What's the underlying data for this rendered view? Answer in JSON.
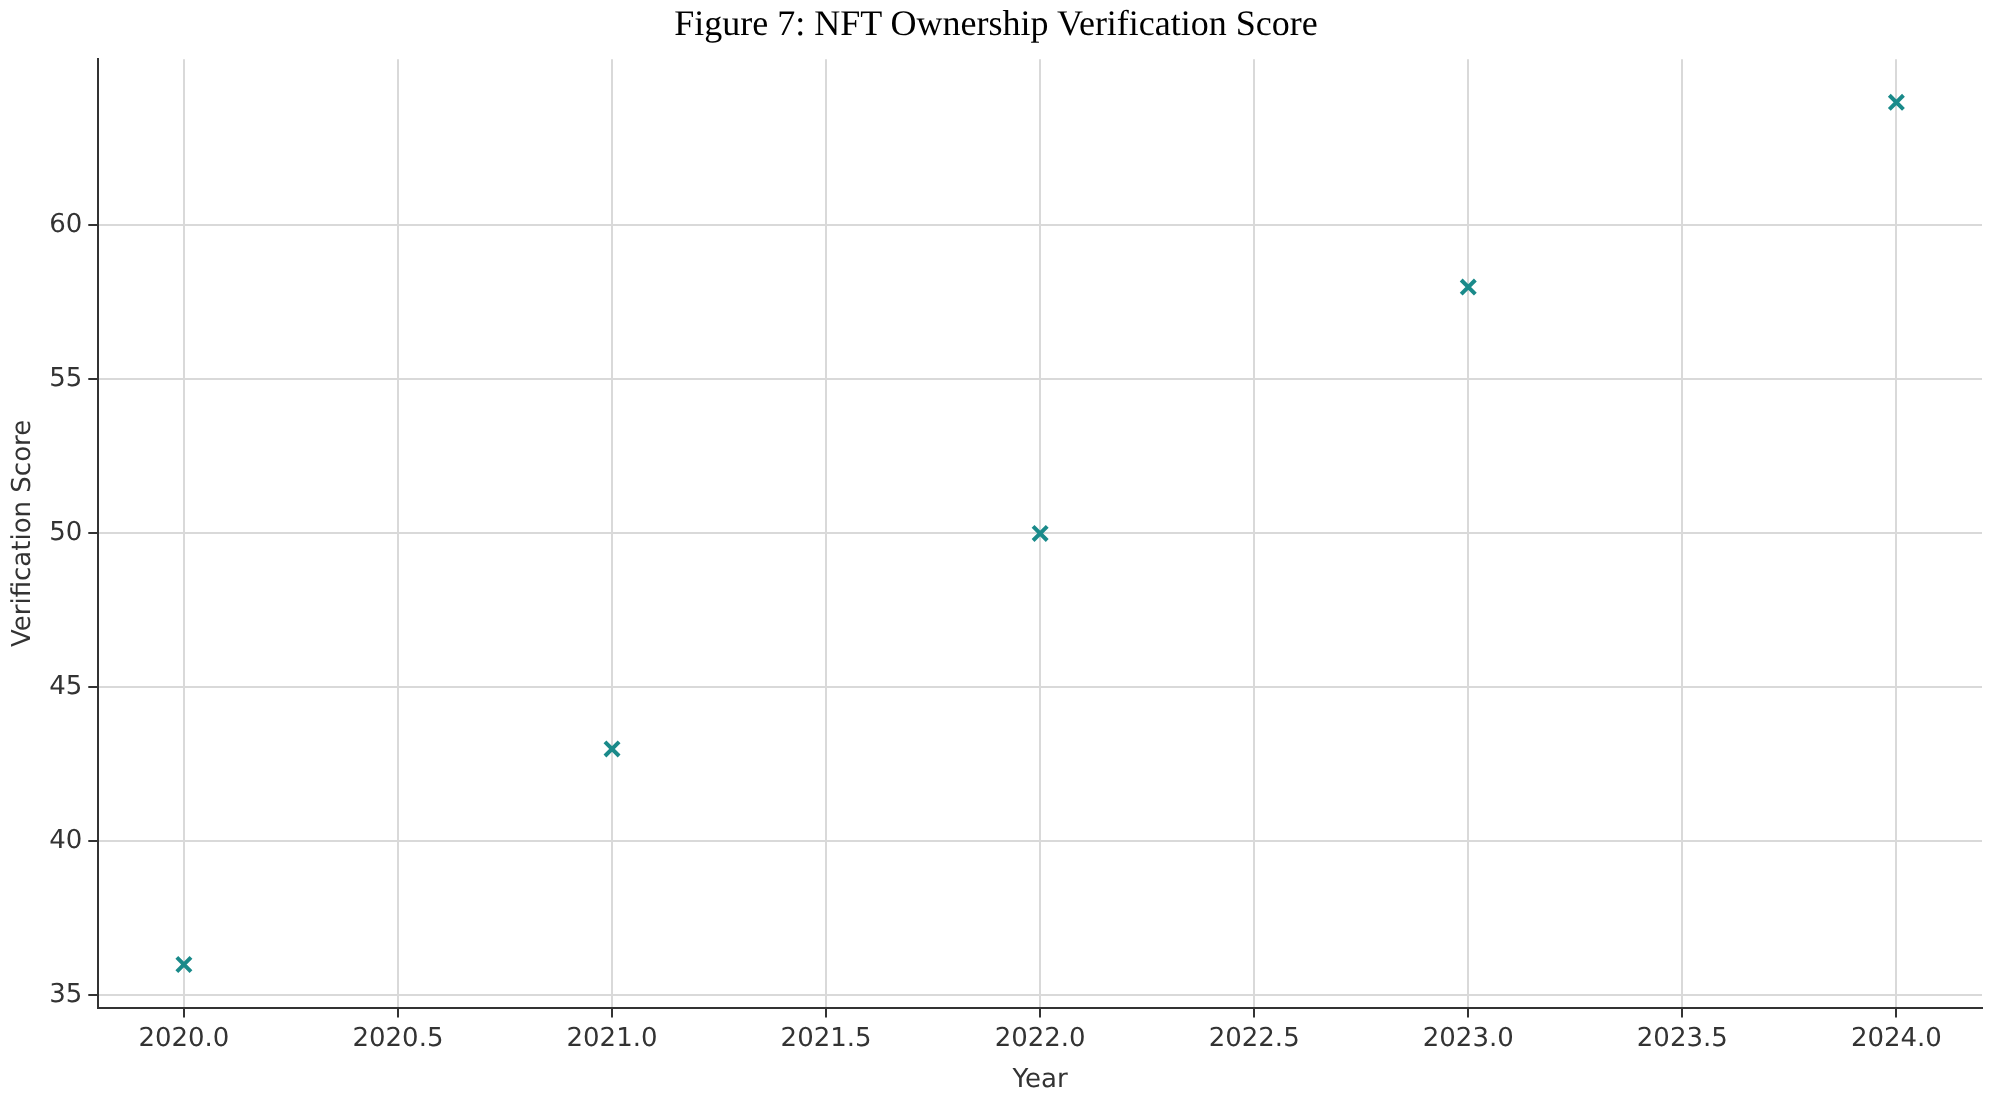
{
  "chart_data": {
    "type": "scatter",
    "title": "Figure 7: NFT Ownership Verification Score",
    "xlabel": "Year",
    "ylabel": "Verification Score",
    "x": [
      2020,
      2021,
      2022,
      2023,
      2024
    ],
    "series": [
      {
        "color": "#1a8a8a",
        "values": [
          36,
          43,
          50,
          58,
          64
        ]
      }
    ],
    "xlim": [
      2019.8,
      2024.2
    ],
    "xticks": [
      {
        "value": 2020,
        "label": "2020.0"
      },
      {
        "value": 2020.5,
        "label": "2020.5"
      },
      {
        "value": 2021,
        "label": "2021.0"
      },
      {
        "value": 2021.5,
        "label": "2021.5"
      },
      {
        "value": 2022,
        "label": "2022.0"
      },
      {
        "value": 2022.5,
        "label": "2022.5"
      },
      {
        "value": 2023,
        "label": "2023.0"
      },
      {
        "value": 2023.5,
        "label": "2023.5"
      },
      {
        "value": 2024,
        "label": "2024.0"
      }
    ],
    "ylim": [
      34.6,
      65.4
    ],
    "yticks": [
      35,
      40,
      45,
      50,
      55,
      60
    ],
    "grid": true,
    "marker": "cross",
    "legend": false
  }
}
